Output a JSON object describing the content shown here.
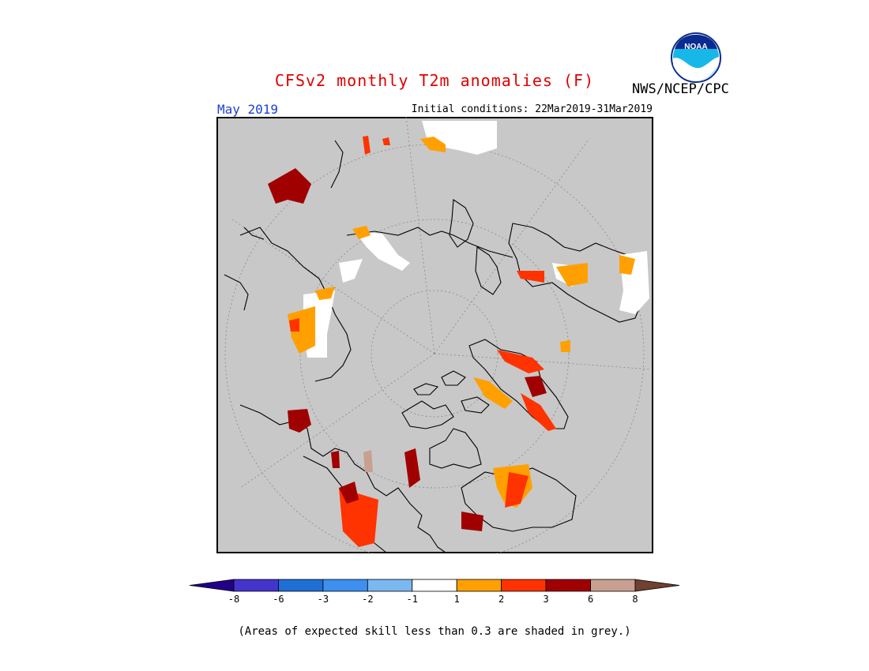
{
  "title": "CFSv2 monthly T2m anomalies (F)",
  "agency": "NWS/NCEP/CPC",
  "logo_text": "NOAA",
  "month": "May 2019",
  "initial_conditions": "Initial conditions: 22Mar2019-31Mar2019",
  "footnote": "(Areas of expected skill less than 0.3 are shaded in grey.)",
  "colorbar": {
    "labels": [
      "-8",
      "-6",
      "-3",
      "-2",
      "-1",
      "1",
      "2",
      "3",
      "6",
      "8"
    ],
    "colors": [
      "#220088",
      "#4433cc",
      "#1f6fd6",
      "#3d8ff0",
      "#7bb8f2",
      "#ffffff",
      "#ffa000",
      "#ff3300",
      "#a00000",
      "#c8a090",
      "#704030"
    ]
  },
  "map": {
    "background": "#c8c8c8",
    "skill_mask_note": "grey = expected skill < 0.3",
    "anomaly_colors": {
      "neutral": "#ffffff",
      "plus_1_2": "#ffa000",
      "plus_2_3": "#ff3300",
      "plus_3_6": "#a00000",
      "plus_6_8": "#c8a090"
    }
  }
}
